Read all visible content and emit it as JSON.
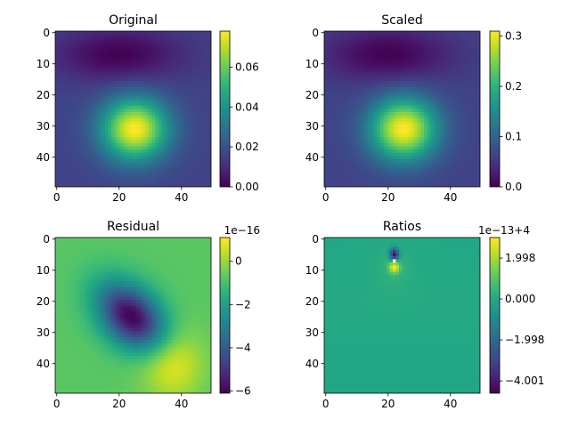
{
  "chart_data": [
    {
      "type": "heatmap",
      "title": "Original",
      "x_ticks": [
        0,
        20,
        40
      ],
      "y_ticks": [
        0,
        10,
        20,
        30,
        40
      ],
      "xlim": [
        -0.5,
        49.5
      ],
      "ylim": [
        49.5,
        -0.5
      ],
      "colorbar": {
        "range": [
          0.0,
          0.078
        ],
        "ticks": [
          "0.00",
          "0.02",
          "0.04",
          "0.06"
        ],
        "tick_values": [
          0.0,
          0.02,
          0.04,
          0.06
        ],
        "offset_label": ""
      },
      "colormap": "viridis",
      "features": [
        {
          "type": "peak",
          "x": 25,
          "y": 31,
          "value": 0.078
        },
        {
          "type": "minimum",
          "x": 20,
          "y": 7,
          "value": 0.0
        }
      ]
    },
    {
      "type": "heatmap",
      "title": "Scaled",
      "x_ticks": [
        0,
        20,
        40
      ],
      "y_ticks": [
        0,
        10,
        20,
        30,
        40
      ],
      "xlim": [
        -0.5,
        49.5
      ],
      "ylim": [
        49.5,
        -0.5
      ],
      "colorbar": {
        "range": [
          0.0,
          0.31
        ],
        "ticks": [
          "0.0",
          "0.1",
          "0.2",
          "0.3"
        ],
        "tick_values": [
          0.0,
          0.1,
          0.2,
          0.3
        ],
        "offset_label": ""
      },
      "colormap": "viridis",
      "features": [
        {
          "type": "peak",
          "x": 25,
          "y": 31,
          "value": 0.31
        },
        {
          "type": "minimum",
          "x": 20,
          "y": 7,
          "value": 0.0
        }
      ]
    },
    {
      "type": "heatmap",
      "title": "Residual",
      "x_ticks": [
        0,
        20,
        40
      ],
      "y_ticks": [
        0,
        10,
        20,
        30,
        40
      ],
      "xlim": [
        -0.5,
        49.5
      ],
      "ylim": [
        49.5,
        -0.5
      ],
      "colorbar": {
        "range": [
          -6.1,
          1.1
        ],
        "ticks": [
          "0",
          "−2",
          "−4",
          "−6"
        ],
        "tick_values": [
          0,
          -2,
          -4,
          -6
        ],
        "offset_label": "1e−16"
      },
      "colormap": "viridis",
      "features": [
        {
          "type": "minimum",
          "x": 24,
          "y": 25,
          "value": -6.0
        },
        {
          "type": "maximum",
          "x": 37,
          "y": 40,
          "value": 1.0
        }
      ]
    },
    {
      "type": "heatmap",
      "title": "Ratios",
      "x_ticks": [
        0,
        20,
        40
      ],
      "y_ticks": [
        0,
        10,
        20,
        30,
        40
      ],
      "xlim": [
        -0.5,
        49.5
      ],
      "ylim": [
        49.5,
        -0.5
      ],
      "colorbar": {
        "range": [
          -4.6,
          3.0
        ],
        "ticks": [
          "1.998",
          "0.000",
          "−1.998",
          "−4.001"
        ],
        "tick_values": [
          1.998,
          0.0,
          -1.998,
          -4.001
        ],
        "offset_label": "1e−13+4"
      },
      "colormap": "viridis",
      "features": [
        {
          "type": "spike",
          "x": 22,
          "y": 5,
          "value": -4.5
        },
        {
          "type": "spike",
          "x": 22,
          "y": 9,
          "value": 2.8
        }
      ]
    }
  ]
}
